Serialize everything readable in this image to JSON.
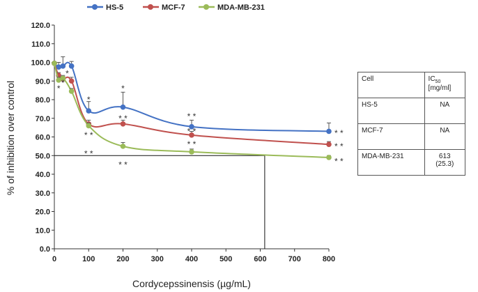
{
  "chart_data": {
    "type": "line",
    "title": "",
    "xlabel": "Cordycepssinensis (µg/mL)",
    "ylabel": "% of inhibition over control",
    "xlim": [
      0,
      800
    ],
    "ylim": [
      0,
      120
    ],
    "x_ticks": [
      0,
      100,
      200,
      300,
      400,
      500,
      600,
      700,
      800
    ],
    "y_ticks": [
      "0.0",
      "10.0",
      "20.0",
      "30.0",
      "40.0",
      "50.0",
      "60.0",
      "70.0",
      "80.0",
      "90.0",
      "100.0",
      "110.0",
      "120.0"
    ],
    "legend_position": "top",
    "series": [
      {
        "name": "HS-5",
        "color": "#4472C4",
        "x": [
          0,
          12.5,
          25,
          50,
          100,
          200,
          400,
          800
        ],
        "y": [
          99.5,
          97.5,
          98.0,
          98.0,
          74.0,
          76.0,
          65.5,
          63.0
        ],
        "err": [
          0,
          2.5,
          5.0,
          2.5,
          5.0,
          8.0,
          3.5,
          4.5
        ]
      },
      {
        "name": "MCF-7",
        "color": "#C0504D",
        "x": [
          0,
          12.5,
          25,
          50,
          100,
          200,
          400,
          800
        ],
        "y": [
          99.5,
          93.0,
          91.0,
          90.0,
          67.0,
          67.0,
          61.0,
          56.0
        ],
        "err": [
          0,
          1.5,
          1.5,
          2.0,
          2.0,
          2.0,
          2.0,
          1.5
        ]
      },
      {
        "name": "MDA-MB-231",
        "color": "#9BBB59",
        "x": [
          0,
          12.5,
          25,
          50,
          100,
          200,
          400,
          800
        ],
        "y": [
          99.5,
          90.5,
          91.5,
          84.5,
          66.0,
          55.0,
          52.0,
          49.0
        ],
        "err": [
          0,
          1.5,
          1.5,
          1.5,
          1.5,
          2.0,
          1.5,
          1.0
        ]
      }
    ],
    "reference_lines": [
      {
        "type": "horizontal",
        "y": 50,
        "x_from": 0,
        "x_to": 613
      },
      {
        "type": "vertical",
        "x": 613,
        "y_from": 0,
        "y_to": 50
      }
    ],
    "annotations": [
      {
        "text": "*",
        "x": 12.5,
        "y": 86
      },
      {
        "text": "*",
        "x": 25,
        "y": 89
      },
      {
        "text": "*",
        "x": 37.5,
        "y": 94
      },
      {
        "text": "*",
        "x": 100,
        "y": 80
      },
      {
        "text": "* *",
        "x": 100,
        "y": 61
      },
      {
        "text": "* *",
        "x": 100,
        "y": 51
      },
      {
        "text": "*",
        "x": 200,
        "y": 86
      },
      {
        "text": "* *",
        "x": 200,
        "y": 70
      },
      {
        "text": "* *",
        "x": 200,
        "y": 45
      },
      {
        "text": "* *",
        "x": 400,
        "y": 71
      },
      {
        "text": "* *",
        "x": 400,
        "y": 63
      },
      {
        "text": "* *",
        "x": 400,
        "y": 56
      },
      {
        "text": "* *",
        "x": 800,
        "y": 62
      },
      {
        "text": "* *",
        "x": 800,
        "y": 55
      },
      {
        "text": "* *",
        "x": 800,
        "y": 47
      }
    ]
  },
  "ic50_table": {
    "header": {
      "col1": "Cell",
      "col2_main": "IC",
      "col2_sub": "50",
      "col2_unit": "[mg/ml]"
    },
    "rows": [
      {
        "cell": "HS-5",
        "value": "NA"
      },
      {
        "cell": "MCF-7",
        "value": "NA"
      },
      {
        "cell": "MDA-MB-231",
        "value": "613",
        "value2": "(25.3)"
      }
    ]
  }
}
